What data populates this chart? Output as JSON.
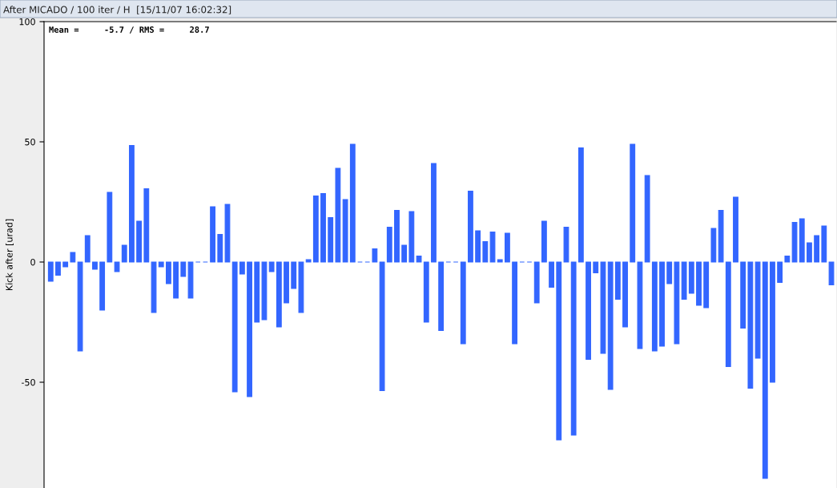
{
  "chart_data": {
    "type": "bar",
    "title": "After MICADO / 100 iter / H  [15/11/07 16:02:32]",
    "ylabel": "Kick after [urad]",
    "annotations": [
      "Mean =     -5.7 / RMS =     28.7"
    ],
    "categories": [
      null,
      null,
      null,
      null,
      null,
      null,
      null,
      null,
      null,
      null,
      null,
      null,
      null,
      null,
      null,
      null,
      null,
      null,
      null,
      null,
      null,
      null,
      null,
      null,
      null,
      null,
      null,
      null,
      null,
      null,
      null,
      null,
      null,
      null,
      null,
      null,
      null,
      null,
      null,
      null,
      null,
      null,
      null,
      null,
      null,
      null,
      null,
      null,
      null,
      null,
      null,
      null,
      null,
      null,
      null,
      null,
      null,
      null,
      null,
      null,
      null,
      null,
      null,
      null,
      null,
      null,
      null,
      null,
      null,
      null,
      null,
      null,
      null,
      null,
      null,
      null,
      null,
      null,
      null,
      null,
      null,
      null,
      null,
      null,
      null,
      null,
      null,
      null,
      null,
      null,
      null,
      null,
      null,
      null,
      null,
      null,
      null,
      null,
      null,
      null,
      null,
      null,
      null,
      null,
      null,
      null,
      null
    ],
    "values": [
      -8,
      -5.5,
      -2,
      4,
      -37,
      11,
      -3,
      -20,
      29,
      -4,
      7,
      48.5,
      17,
      30.5,
      -21,
      -2,
      -9,
      -15,
      -6,
      -15,
      0,
      0,
      23,
      11.5,
      24,
      -54,
      -5,
      -56,
      -25,
      -24,
      -4,
      -27,
      -17,
      -11,
      -21,
      1,
      27.5,
      28.5,
      18.5,
      39,
      26,
      49,
      0,
      0,
      5.5,
      -53.5,
      14.5,
      21.5,
      7,
      21,
      2.5,
      -25,
      41,
      -28.5,
      0,
      0,
      -34,
      29.5,
      13,
      8.5,
      12.5,
      1,
      12,
      -34,
      0,
      0,
      -17,
      17,
      -10.5,
      -74,
      14.5,
      -72,
      47.5,
      -40.5,
      -4.5,
      -38,
      -53,
      -15.5,
      -27,
      49,
      -36,
      36,
      -37,
      -35,
      -9,
      -34,
      -15.5,
      -13,
      -18,
      -19,
      14,
      21.5,
      -43.5,
      27,
      -27.5,
      -52.5,
      -40,
      -90,
      -50,
      -8.5,
      2.5,
      16.5,
      18,
      8,
      11,
      15,
      -9.5
    ],
    "color": "#3366ff",
    "ylim": [
      -94,
      100
    ],
    "yticks": [
      -50,
      0,
      50,
      100
    ],
    "tick_labels": "y",
    "grid": false,
    "legend": false
  }
}
